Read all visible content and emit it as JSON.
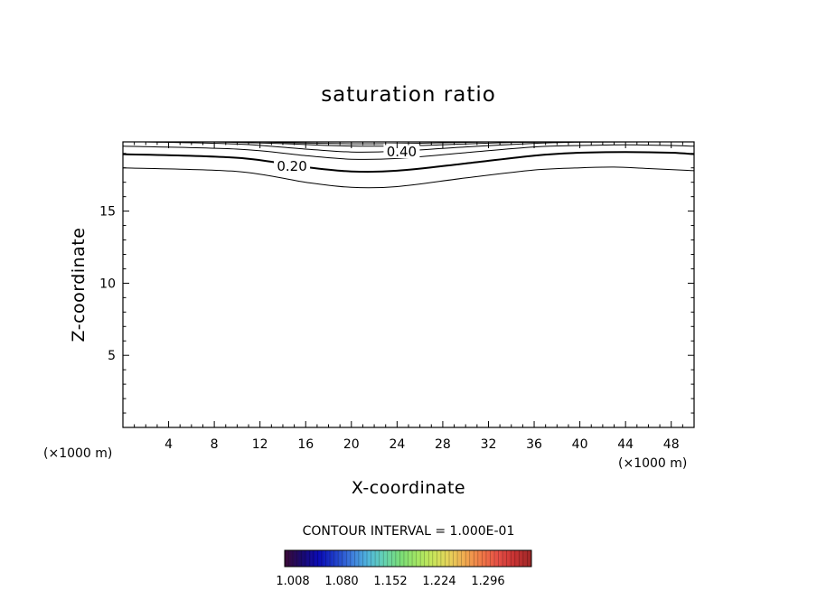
{
  "chart_data": {
    "type": "contour",
    "title": "saturation ratio",
    "xlabel": "X-coordinate",
    "ylabel": "Z-coordinate",
    "x_unit": "(×1000 m)",
    "z_unit": "(×1000 m)",
    "xlim": [
      0,
      50
    ],
    "ylim": [
      0,
      19.8
    ],
    "x_ticks": [
      4,
      8,
      12,
      16,
      20,
      24,
      28,
      32,
      36,
      40,
      44,
      48
    ],
    "y_ticks": [
      5,
      10,
      15
    ],
    "contour_interval_text": "CONTOUR INTERVAL = 1.000E-01",
    "contours": [
      {
        "level": 0.1,
        "label": "",
        "thick": false,
        "x": [
          0,
          10,
          16,
          20,
          24,
          30,
          36,
          40,
          43,
          46,
          50
        ],
        "z": [
          18.0,
          17.75,
          17.0,
          16.65,
          16.7,
          17.3,
          17.85,
          18.0,
          18.05,
          17.95,
          17.8
        ]
      },
      {
        "level": 0.2,
        "label": "0.20",
        "thick": true,
        "x": [
          0,
          10,
          16,
          20,
          24,
          30,
          36,
          40,
          44,
          48,
          50
        ],
        "z": [
          18.95,
          18.7,
          18.05,
          17.75,
          17.8,
          18.3,
          18.85,
          19.05,
          19.1,
          19.05,
          18.95
        ]
      },
      {
        "level": 0.3,
        "label": "",
        "thick": false,
        "x": [
          0,
          10,
          16,
          20,
          24,
          30,
          36,
          40,
          44,
          48,
          50
        ],
        "z": [
          19.5,
          19.3,
          18.85,
          18.6,
          18.65,
          19.05,
          19.45,
          19.55,
          19.6,
          19.55,
          19.5
        ]
      },
      {
        "level": 0.4,
        "label": "0.40",
        "thick": false,
        "x": [
          2,
          10,
          16,
          20,
          24,
          30,
          36,
          40,
          46,
          50
        ],
        "z": [
          19.8,
          19.65,
          19.3,
          19.1,
          19.15,
          19.45,
          19.7,
          19.78,
          19.8,
          19.8
        ]
      },
      {
        "level": 0.5,
        "label": "",
        "thick": false,
        "x": [
          8,
          14,
          18,
          22,
          26,
          30,
          34,
          38
        ],
        "z": [
          19.8,
          19.68,
          19.55,
          19.5,
          19.55,
          19.66,
          19.76,
          19.8
        ]
      },
      {
        "level": 0.6,
        "label": "",
        "thick": false,
        "x": [
          12,
          16,
          20,
          24,
          28,
          32
        ],
        "z": [
          19.8,
          19.72,
          19.67,
          19.68,
          19.74,
          19.8
        ]
      }
    ],
    "colorbar": {
      "ticks": [
        "1.008",
        "1.080",
        "1.152",
        "1.224",
        "1.296"
      ],
      "colors": [
        "#3a0a3a",
        "#1a0a6e",
        "#0a0ab4",
        "#1e3cc8",
        "#3c78dc",
        "#50b4dc",
        "#64d2b4",
        "#78dc78",
        "#a0e664",
        "#c8e65a",
        "#e6d25a",
        "#f0aa50",
        "#f07846",
        "#e65046",
        "#c83232",
        "#a02828"
      ]
    }
  }
}
